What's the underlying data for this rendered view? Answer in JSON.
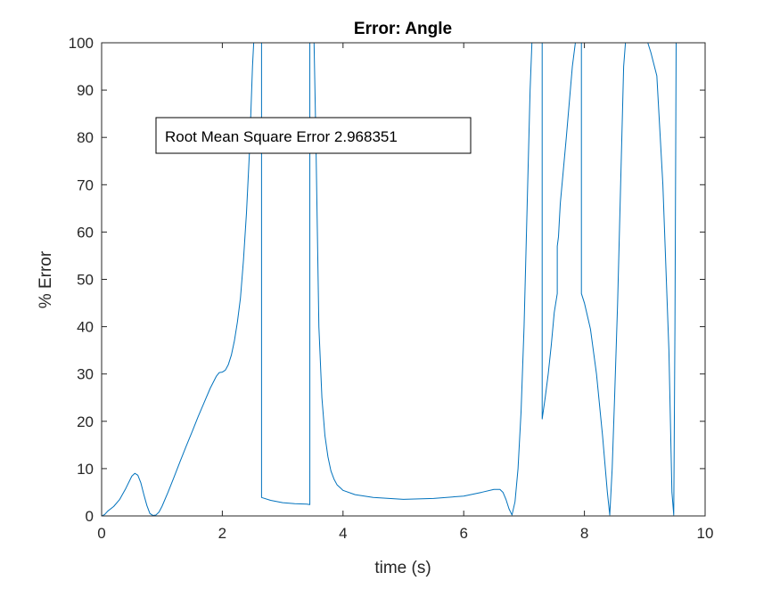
{
  "chart_data": {
    "type": "line",
    "title": "Error: Angle",
    "xlabel": "time (s)",
    "ylabel": "% Error",
    "xlim": [
      0,
      10
    ],
    "ylim": [
      0,
      100
    ],
    "xticks": [
      "0",
      "2",
      "4",
      "6",
      "8",
      "10"
    ],
    "yticks": [
      "0",
      "10",
      "20",
      "30",
      "40",
      "50",
      "60",
      "70",
      "80",
      "90",
      "100"
    ],
    "grid": false,
    "annotation": "Root Mean Square Error 2.968351",
    "series": [
      {
        "color": "#0072BD",
        "points": [
          [
            0.0,
            0.0
          ],
          [
            0.05,
            0.3
          ],
          [
            0.1,
            1.0
          ],
          [
            0.2,
            2.0
          ],
          [
            0.3,
            3.5
          ],
          [
            0.4,
            5.8
          ],
          [
            0.5,
            8.4
          ],
          [
            0.55,
            9.0
          ],
          [
            0.6,
            8.6
          ],
          [
            0.65,
            7.0
          ],
          [
            0.7,
            4.5
          ],
          [
            0.75,
            2.2
          ],
          [
            0.8,
            0.5
          ],
          [
            0.85,
            0.1
          ],
          [
            0.9,
            0.2
          ],
          [
            0.95,
            0.8
          ],
          [
            1.0,
            2.0
          ],
          [
            1.1,
            5.0
          ],
          [
            1.2,
            8.2
          ],
          [
            1.3,
            11.5
          ],
          [
            1.4,
            14.7
          ],
          [
            1.5,
            17.8
          ],
          [
            1.6,
            21.0
          ],
          [
            1.7,
            24.0
          ],
          [
            1.8,
            27.0
          ],
          [
            1.9,
            29.5
          ],
          [
            1.95,
            30.3
          ],
          [
            2.0,
            30.4
          ],
          [
            2.05,
            30.8
          ],
          [
            2.1,
            32.0
          ],
          [
            2.15,
            34.0
          ],
          [
            2.2,
            37.0
          ],
          [
            2.25,
            41.0
          ],
          [
            2.3,
            46.0
          ],
          [
            2.35,
            54.0
          ],
          [
            2.4,
            64.0
          ],
          [
            2.45,
            77.0
          ],
          [
            2.5,
            95.0
          ],
          [
            2.52,
            100.0
          ],
          [
            2.65,
            100.0
          ],
          [
            2.65,
            3.9
          ],
          [
            2.8,
            3.3
          ],
          [
            3.0,
            2.8
          ],
          [
            3.2,
            2.6
          ],
          [
            3.4,
            2.5
          ],
          [
            3.45,
            2.4
          ],
          [
            3.45,
            100.0
          ],
          [
            3.52,
            100.0
          ],
          [
            3.55,
            80.0
          ],
          [
            3.6,
            40.0
          ],
          [
            3.65,
            25.0
          ],
          [
            3.7,
            17.0
          ],
          [
            3.75,
            12.5
          ],
          [
            3.8,
            9.5
          ],
          [
            3.85,
            7.8
          ],
          [
            3.9,
            6.6
          ],
          [
            4.0,
            5.4
          ],
          [
            4.2,
            4.5
          ],
          [
            4.5,
            3.9
          ],
          [
            5.0,
            3.5
          ],
          [
            5.5,
            3.7
          ],
          [
            6.0,
            4.2
          ],
          [
            6.3,
            5.0
          ],
          [
            6.5,
            5.6
          ],
          [
            6.6,
            5.6
          ],
          [
            6.65,
            5.0
          ],
          [
            6.7,
            3.5
          ],
          [
            6.75,
            1.5
          ],
          [
            6.8,
            0.2
          ],
          [
            6.85,
            3.0
          ],
          [
            6.9,
            10.0
          ],
          [
            6.95,
            22.0
          ],
          [
            7.0,
            40.0
          ],
          [
            7.05,
            65.0
          ],
          [
            7.1,
            90.0
          ],
          [
            7.13,
            100.0
          ],
          [
            7.3,
            100.0
          ],
          [
            7.3,
            20.5
          ],
          [
            7.35,
            25.0
          ],
          [
            7.4,
            30.0
          ],
          [
            7.45,
            36.0
          ],
          [
            7.5,
            43.0
          ],
          [
            7.55,
            47.0
          ],
          [
            7.55,
            57.0
          ],
          [
            7.57,
            59.0
          ],
          [
            7.6,
            66.0
          ],
          [
            7.7,
            80.0
          ],
          [
            7.8,
            95.0
          ],
          [
            7.85,
            100.0
          ],
          [
            7.95,
            100.0
          ],
          [
            7.95,
            47.0
          ],
          [
            8.0,
            45.0
          ],
          [
            8.1,
            39.5
          ],
          [
            8.2,
            30.0
          ],
          [
            8.3,
            17.0
          ],
          [
            8.38,
            5.0
          ],
          [
            8.42,
            0.2
          ],
          [
            8.46,
            10.0
          ],
          [
            8.5,
            25.0
          ],
          [
            8.55,
            45.0
          ],
          [
            8.6,
            70.0
          ],
          [
            8.65,
            95.0
          ],
          [
            8.68,
            100.0
          ],
          [
            9.05,
            100.0
          ],
          [
            9.1,
            98.0
          ],
          [
            9.2,
            93.0
          ],
          [
            9.3,
            70.0
          ],
          [
            9.4,
            35.0
          ],
          [
            9.45,
            5.0
          ],
          [
            9.48,
            0.2
          ],
          [
            9.5,
            40.0
          ],
          [
            9.52,
            100.0
          ]
        ]
      }
    ]
  }
}
